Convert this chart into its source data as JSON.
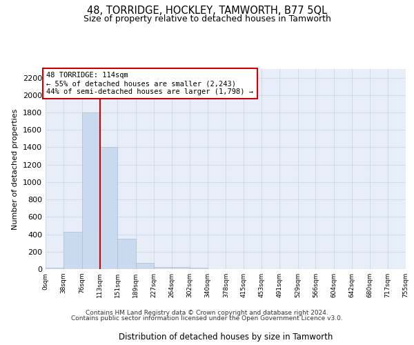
{
  "title": "48, TORRIDGE, HOCKLEY, TAMWORTH, B77 5QL",
  "subtitle": "Size of property relative to detached houses in Tamworth",
  "xlabel": "Distribution of detached houses by size in Tamworth",
  "ylabel": "Number of detached properties",
  "footer_line1": "Contains HM Land Registry data © Crown copyright and database right 2024.",
  "footer_line2": "Contains public sector information licensed under the Open Government Licence v3.0.",
  "bar_color": "#c9d9ee",
  "bar_edge_color": "#aabfd8",
  "grid_color": "#d0dcea",
  "background_color": "#e8eef8",
  "annotation_line1": "48 TORRIDGE: 114sqm",
  "annotation_line2": "← 55% of detached houses are smaller (2,243)",
  "annotation_line3": "44% of semi-detached houses are larger (1,798) →",
  "annotation_box_color": "#ffffff",
  "annotation_border_color": "#cc0000",
  "vline_color": "#cc0000",
  "vline_x": 114,
  "bin_edges": [
    0,
    38,
    76,
    113,
    151,
    189,
    227,
    264,
    302,
    340,
    378,
    415,
    453,
    491,
    529,
    566,
    604,
    642,
    680,
    717,
    755
  ],
  "bar_heights": [
    15,
    425,
    1800,
    1400,
    350,
    75,
    25,
    20,
    15,
    0,
    0,
    0,
    0,
    0,
    0,
    0,
    0,
    0,
    0,
    0
  ],
  "ylim": [
    0,
    2300
  ],
  "yticks": [
    0,
    200,
    400,
    600,
    800,
    1000,
    1200,
    1400,
    1600,
    1800,
    2000,
    2200
  ],
  "tick_labels": [
    "0sqm",
    "38sqm",
    "76sqm",
    "113sqm",
    "151sqm",
    "189sqm",
    "227sqm",
    "264sqm",
    "302sqm",
    "340sqm",
    "378sqm",
    "415sqm",
    "453sqm",
    "491sqm",
    "529sqm",
    "566sqm",
    "604sqm",
    "642sqm",
    "680sqm",
    "717sqm",
    "755sqm"
  ]
}
